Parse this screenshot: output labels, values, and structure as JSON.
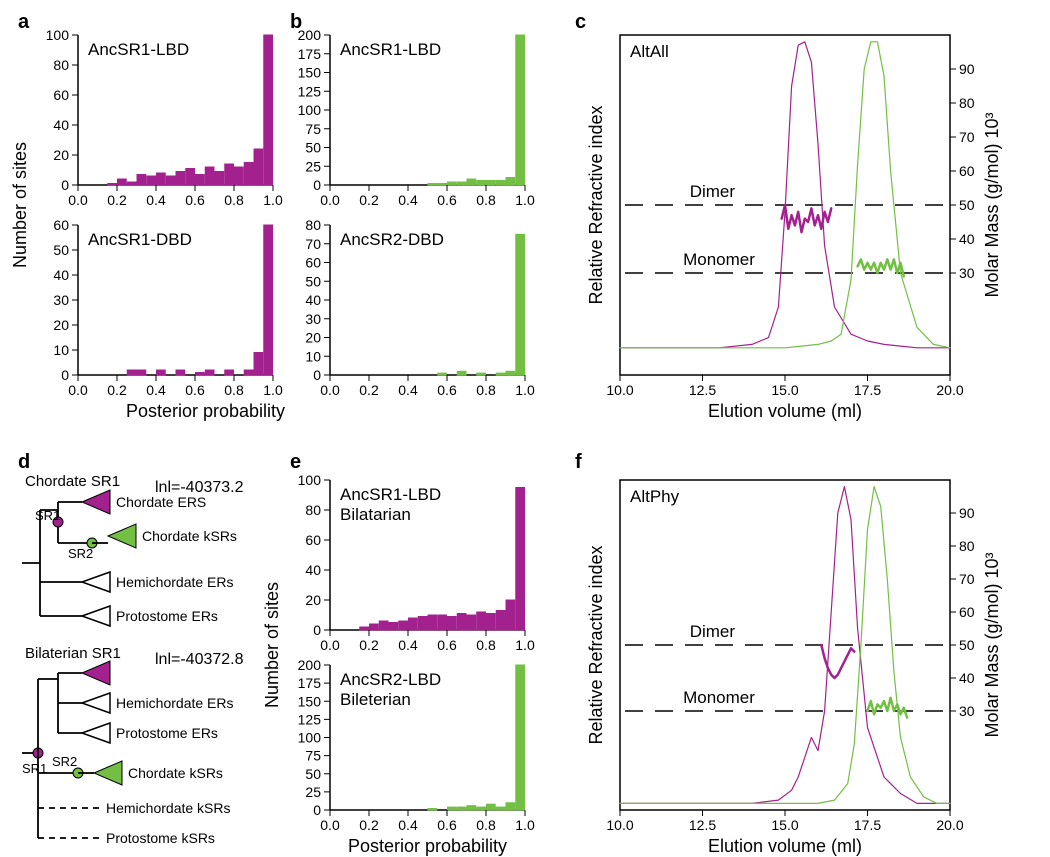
{
  "colors": {
    "magenta": "#a3218e",
    "green": "#72bf44",
    "black": "#000000",
    "white": "#ffffff",
    "grid": "#cccccc"
  },
  "panel_a": {
    "label": "a",
    "top": {
      "title": "AncSR1-LBD",
      "type": "histogram",
      "xlim": [
        0.0,
        1.0
      ],
      "ylim": [
        0,
        100
      ],
      "xticks": [
        0.0,
        0.2,
        0.4,
        0.6,
        0.8,
        1.0
      ],
      "yticks": [
        0,
        20,
        40,
        60,
        80,
        100
      ],
      "bar_color": "#a3218e",
      "bins": [
        0.0,
        0.05,
        0.1,
        0.15,
        0.2,
        0.25,
        0.3,
        0.35,
        0.4,
        0.45,
        0.5,
        0.55,
        0.6,
        0.65,
        0.7,
        0.75,
        0.8,
        0.85,
        0.9,
        0.95,
        1.0
      ],
      "counts": [
        0,
        0,
        0,
        1,
        4,
        2,
        7,
        6,
        8,
        6,
        9,
        11,
        7,
        12,
        9,
        14,
        12,
        15,
        24,
        104
      ]
    },
    "bottom": {
      "title": "AncSR1-DBD",
      "type": "histogram",
      "xlim": [
        0.0,
        1.0
      ],
      "ylim": [
        0,
        60
      ],
      "xticks": [
        0.0,
        0.2,
        0.4,
        0.6,
        0.8,
        1.0
      ],
      "yticks": [
        0,
        10,
        20,
        30,
        40,
        50,
        60
      ],
      "bar_color": "#a3218e",
      "bins": [
        0.0,
        0.05,
        0.1,
        0.15,
        0.2,
        0.25,
        0.3,
        0.35,
        0.4,
        0.45,
        0.5,
        0.55,
        0.6,
        0.65,
        0.7,
        0.75,
        0.8,
        0.85,
        0.9,
        0.95,
        1.0
      ],
      "counts": [
        0,
        0,
        0,
        0,
        0,
        2,
        2,
        0,
        2,
        0,
        2,
        0,
        1,
        2,
        0,
        2,
        0,
        2,
        9,
        60
      ]
    },
    "ylabel": "Number of sites",
    "xlabel": "Posterior probability"
  },
  "panel_b": {
    "label": "b",
    "top": {
      "title": "AncSR1-LBD",
      "type": "histogram",
      "xlim": [
        0.0,
        1.0
      ],
      "ylim": [
        0,
        200
      ],
      "xticks": [
        0.0,
        0.2,
        0.4,
        0.6,
        0.8,
        1.0
      ],
      "yticks": [
        0,
        25,
        50,
        75,
        100,
        125,
        150,
        175,
        200
      ],
      "bar_color": "#72bf44",
      "bins": [
        0.0,
        0.05,
        0.1,
        0.15,
        0.2,
        0.25,
        0.3,
        0.35,
        0.4,
        0.45,
        0.5,
        0.55,
        0.6,
        0.65,
        0.7,
        0.75,
        0.8,
        0.85,
        0.9,
        0.95,
        1.0
      ],
      "counts": [
        0,
        0,
        0,
        0,
        0,
        0,
        0,
        0,
        0,
        0,
        2,
        2,
        4,
        4,
        8,
        6,
        6,
        6,
        10,
        205
      ]
    },
    "bottom": {
      "title": "AncSR2-DBD",
      "type": "histogram",
      "xlim": [
        0.0,
        1.0
      ],
      "ylim": [
        0,
        80
      ],
      "xticks": [
        0.0,
        0.2,
        0.4,
        0.6,
        0.8,
        1.0
      ],
      "yticks": [
        0,
        10,
        20,
        30,
        40,
        50,
        60,
        70,
        80
      ],
      "bar_color": "#72bf44",
      "bins": [
        0.0,
        0.05,
        0.1,
        0.15,
        0.2,
        0.25,
        0.3,
        0.35,
        0.4,
        0.45,
        0.5,
        0.55,
        0.6,
        0.65,
        0.7,
        0.75,
        0.8,
        0.85,
        0.9,
        0.95,
        1.0
      ],
      "counts": [
        0,
        0,
        0,
        0,
        0,
        0,
        0,
        0,
        0,
        0,
        0,
        1,
        0,
        2,
        0,
        1,
        0,
        1,
        2,
        75
      ]
    },
    "xlabel": "Posterior probability"
  },
  "panel_c": {
    "label": "c",
    "title": "AltAll",
    "type": "line",
    "xlim": [
      10.0,
      20.0
    ],
    "xticks": [
      10.0,
      12.5,
      15.0,
      17.5,
      20.0
    ],
    "xlabel": "Elution volume (ml)",
    "left_axis": {
      "label": "Relative Refractive index",
      "lim": [
        0,
        100
      ]
    },
    "right_axis": {
      "label": "Molar Mass (g/mol)  10³",
      "lim": [
        0,
        100
      ],
      "ticks": [
        30,
        40,
        50,
        60,
        70,
        80,
        90
      ]
    },
    "dimer_line": {
      "label": "Dimer",
      "y": 50
    },
    "monomer_line": {
      "label": "Monomer",
      "y": 30
    },
    "series": [
      {
        "name": "AncSR1 RI",
        "color": "#a3218e",
        "width": 1.2,
        "x": [
          10,
          11,
          12,
          13,
          14,
          14.5,
          14.8,
          15.0,
          15.2,
          15.4,
          15.6,
          15.8,
          16.0,
          16.2,
          16.5,
          17,
          17.5,
          18,
          18.5,
          19,
          20
        ],
        "y": [
          8,
          8,
          8,
          8,
          9,
          11,
          20,
          48,
          85,
          97,
          98,
          92,
          68,
          38,
          20,
          12,
          10,
          9,
          8.5,
          8,
          8
        ]
      },
      {
        "name": "AncSR2 RI",
        "color": "#72bf44",
        "width": 1.2,
        "x": [
          10,
          13,
          14,
          15,
          15.5,
          16,
          16.4,
          16.7,
          17.0,
          17.2,
          17.4,
          17.6,
          17.8,
          18.0,
          18.2,
          18.5,
          19,
          19.5,
          20
        ],
        "y": [
          8,
          8,
          8,
          8,
          8.5,
          9,
          10,
          12,
          28,
          62,
          90,
          98,
          98,
          88,
          60,
          30,
          14,
          9,
          8
        ]
      },
      {
        "name": "AncSR1 mass",
        "color": "#a3218e",
        "width": 2.5,
        "x": [
          14.9,
          15.0,
          15.1,
          15.2,
          15.3,
          15.4,
          15.5,
          15.6,
          15.7,
          15.8,
          15.9,
          16.0,
          16.1,
          16.2,
          16.3,
          16.4
        ],
        "y": [
          46,
          50,
          43,
          47,
          44,
          48,
          42,
          46,
          45,
          49,
          44,
          47,
          43,
          48,
          45,
          49
        ]
      },
      {
        "name": "AncSR2 mass",
        "color": "#72bf44",
        "width": 2.5,
        "x": [
          17.2,
          17.3,
          17.4,
          17.5,
          17.6,
          17.7,
          17.8,
          17.9,
          18.0,
          18.1,
          18.2,
          18.3,
          18.4,
          18.5,
          18.6
        ],
        "y": [
          32,
          34,
          31,
          33,
          31,
          33,
          30,
          33,
          31,
          34,
          31,
          34,
          30,
          33,
          29
        ]
      }
    ]
  },
  "panel_d": {
    "label": "d",
    "top_heading": "Chordate SR1",
    "top_lnl": "lnl=-40373.2",
    "top_labels": [
      "Chordate ERS",
      "Chordate kSRs",
      "Hemichordate ERs",
      "Protostome ERs"
    ],
    "bottom_heading": "Bilaterian SR1",
    "bottom_lnl": "lnl=-40372.8",
    "bottom_labels": [
      "",
      "Hemichordate ERs",
      "Protostome ERs",
      "Chordate kSRs",
      "Hemichordate kSRs",
      "Protostome kSRs"
    ],
    "sr1": "SR1",
    "sr2": "SR2"
  },
  "panel_e": {
    "label": "e",
    "top": {
      "title": "AncSR1-LBD",
      "subtitle": "Bilatarian",
      "type": "histogram",
      "xlim": [
        0.0,
        1.0
      ],
      "ylim": [
        0,
        100
      ],
      "xticks": [
        0.0,
        0.2,
        0.4,
        0.6,
        0.8,
        1.0
      ],
      "yticks": [
        0,
        20,
        40,
        60,
        80,
        100
      ],
      "bar_color": "#a3218e",
      "bins": [
        0.0,
        0.05,
        0.1,
        0.15,
        0.2,
        0.25,
        0.3,
        0.35,
        0.4,
        0.45,
        0.5,
        0.55,
        0.6,
        0.65,
        0.7,
        0.75,
        0.8,
        0.85,
        0.9,
        0.95,
        1.0
      ],
      "counts": [
        0,
        0,
        0,
        2,
        4,
        6,
        5,
        6,
        8,
        9,
        10,
        10,
        9,
        11,
        10,
        12,
        11,
        13,
        20,
        95
      ]
    },
    "bottom": {
      "title": "AncSR2-LBD",
      "subtitle": "Bileterian",
      "type": "histogram",
      "xlim": [
        0.0,
        1.0
      ],
      "ylim": [
        0,
        200
      ],
      "xticks": [
        0.0,
        0.2,
        0.4,
        0.6,
        0.8,
        1.0
      ],
      "yticks": [
        0,
        25,
        50,
        75,
        100,
        125,
        150,
        175,
        200
      ],
      "bar_color": "#72bf44",
      "bins": [
        0.0,
        0.05,
        0.1,
        0.15,
        0.2,
        0.25,
        0.3,
        0.35,
        0.4,
        0.45,
        0.5,
        0.55,
        0.6,
        0.65,
        0.7,
        0.75,
        0.8,
        0.85,
        0.9,
        0.95,
        1.0
      ],
      "counts": [
        0,
        0,
        0,
        0,
        0,
        0,
        0,
        0,
        0,
        0,
        2,
        0,
        4,
        4,
        6,
        4,
        8,
        4,
        10,
        205
      ]
    },
    "ylabel": "Number of sites",
    "xlabel": "Posterior probability"
  },
  "panel_f": {
    "label": "f",
    "title": "AltPhy",
    "type": "line",
    "xlim": [
      10.0,
      20.0
    ],
    "xticks": [
      10.0,
      12.5,
      15.0,
      17.5,
      20.0
    ],
    "xlabel": "Elution volume (ml)",
    "left_axis": {
      "label": "Relative Refractive index",
      "lim": [
        0,
        100
      ]
    },
    "right_axis": {
      "label": "Molar Mass (g/mol)  10³",
      "lim": [
        0,
        100
      ],
      "ticks": [
        30,
        40,
        50,
        60,
        70,
        80,
        90
      ]
    },
    "dimer_line": {
      "label": "Dimer",
      "y": 50
    },
    "monomer_line": {
      "label": "Monomer",
      "y": 30
    },
    "series": [
      {
        "name": "AncSR1 RI",
        "color": "#a3218e",
        "width": 1.2,
        "x": [
          10,
          13,
          14,
          14.8,
          15.2,
          15.4,
          15.6,
          15.8,
          16.0,
          16.2,
          16.4,
          16.6,
          16.8,
          17.0,
          17.2,
          17.5,
          18,
          18.5,
          19,
          20
        ],
        "y": [
          2,
          2,
          2,
          3,
          6,
          10,
          16,
          22,
          18,
          30,
          60,
          90,
          98,
          88,
          55,
          25,
          10,
          5,
          2,
          2
        ]
      },
      {
        "name": "AncSR2 RI",
        "color": "#72bf44",
        "width": 1.2,
        "x": [
          10,
          14,
          15,
          16,
          16.5,
          16.9,
          17.1,
          17.3,
          17.5,
          17.7,
          17.9,
          18.1,
          18.3,
          18.5,
          18.8,
          19.2,
          19.6,
          20
        ],
        "y": [
          2,
          2,
          2,
          2,
          3,
          8,
          20,
          50,
          85,
          98,
          92,
          70,
          42,
          22,
          10,
          4,
          2,
          2
        ]
      },
      {
        "name": "AncSR1 mass",
        "color": "#a3218e",
        "width": 2.5,
        "x": [
          16.1,
          16.2,
          16.3,
          16.4,
          16.5,
          16.6,
          16.7,
          16.8,
          16.9,
          17.0,
          17.1
        ],
        "y": [
          50,
          46,
          43,
          41,
          40,
          41,
          43,
          45,
          47,
          49,
          48
        ]
      },
      {
        "name": "AncSR2 mass",
        "color": "#72bf44",
        "width": 2.5,
        "x": [
          17.5,
          17.6,
          17.7,
          17.8,
          17.9,
          18.0,
          18.1,
          18.2,
          18.3,
          18.4,
          18.5,
          18.6,
          18.7
        ],
        "y": [
          30,
          33,
          29,
          32,
          31,
          33,
          30,
          34,
          30,
          32,
          29,
          31,
          28
        ]
      }
    ]
  },
  "fontsize": {
    "panel_label": 20,
    "tick": 14,
    "axis_label": 18,
    "title_inset": 17,
    "tree_label": 14
  }
}
